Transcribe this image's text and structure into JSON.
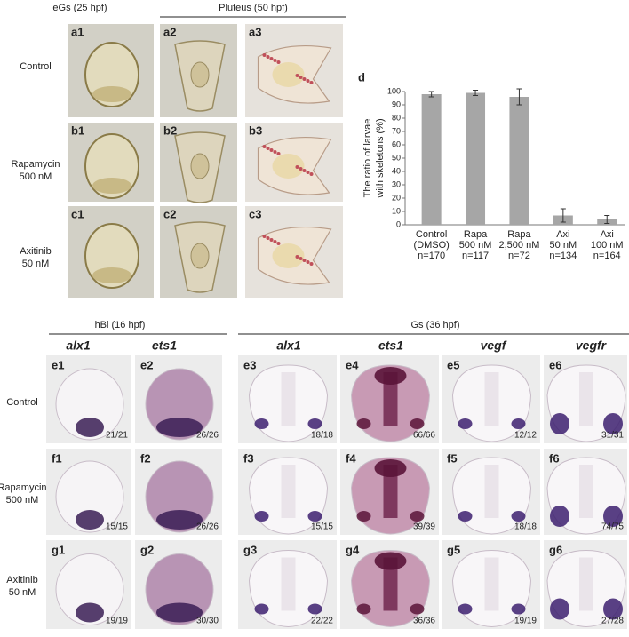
{
  "top": {
    "columns": [
      "eGs (25 hpf)",
      "Pluteus (50 hpf)"
    ],
    "rows": [
      [
        "Control"
      ],
      [
        "Rapamycin",
        "500 nM"
      ],
      [
        "Axitinib",
        "50 nM"
      ]
    ],
    "panels": [
      [
        "a1",
        "a2",
        "a3"
      ],
      [
        "b1",
        "b2",
        "b3"
      ],
      [
        "c1",
        "c2",
        "c3"
      ]
    ]
  },
  "chart_label": "d",
  "chart_data": {
    "type": "bar",
    "ylabel": [
      "The ratio of larvae",
      "with skeletons (%)"
    ],
    "categories": [
      [
        "Control",
        "(DMSO)",
        "n=170"
      ],
      [
        "Rapa",
        "500 nM",
        "n=117"
      ],
      [
        "Rapa",
        "2,500 nM",
        "n=72"
      ],
      [
        "Axi",
        "50 nM",
        "n=134"
      ],
      [
        "Axi",
        "100 nM",
        "n=164"
      ]
    ],
    "values": [
      98,
      99,
      96,
      7,
      4
    ],
    "errors": [
      2,
      2,
      6,
      5,
      3
    ],
    "color": "#a6a6a6",
    "ylim": [
      0,
      100
    ],
    "yticks": [
      0,
      10,
      20,
      30,
      40,
      50,
      60,
      70,
      80,
      90,
      100
    ],
    "grid": false
  },
  "bottom": {
    "columns": [
      "hBl (16 hpf)",
      "Gs (36 hpf)"
    ],
    "genes": [
      "alx1",
      "ets1",
      "alx1",
      "ets1",
      "vegf",
      "vegfr"
    ],
    "rows": [
      [
        "Control"
      ],
      [
        "Rapamycin",
        "500 nM"
      ],
      [
        "Axitinib",
        "50 nM"
      ]
    ],
    "panels": [
      [
        {
          "label": "e1",
          "count": "21/21"
        },
        {
          "label": "e2",
          "count": "26/26"
        },
        {
          "label": "e3",
          "count": "18/18"
        },
        {
          "label": "e4",
          "count": "66/66"
        },
        {
          "label": "e5",
          "count": "12/12"
        },
        {
          "label": "e6",
          "count": "31/31"
        }
      ],
      [
        {
          "label": "f1",
          "count": "15/15"
        },
        {
          "label": "f2",
          "count": "26/26"
        },
        {
          "label": "f3",
          "count": "15/15"
        },
        {
          "label": "f4",
          "count": "39/39"
        },
        {
          "label": "f5",
          "count": "18/18"
        },
        {
          "label": "f6",
          "count": "74/75"
        }
      ],
      [
        {
          "label": "g1",
          "count": "19/19"
        },
        {
          "label": "g2",
          "count": "30/30"
        },
        {
          "label": "g3",
          "count": "22/22"
        },
        {
          "label": "g4",
          "count": "36/36"
        },
        {
          "label": "g5",
          "count": "19/19"
        },
        {
          "label": "g6",
          "count": "27/28"
        }
      ]
    ]
  }
}
